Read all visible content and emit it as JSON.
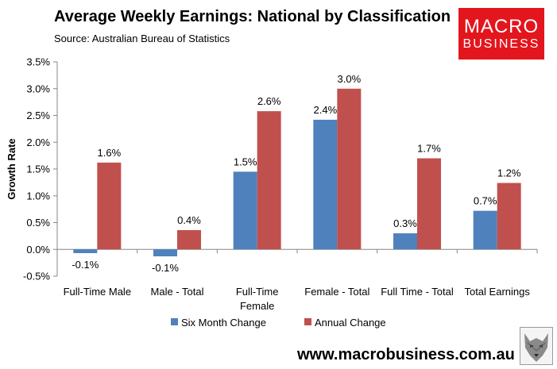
{
  "header": {
    "title": "Average Weekly Earnings: National by Classification",
    "source": "Source: Australian Bureau of Statistics"
  },
  "logo": {
    "line1": "MACRO",
    "line2": "BUSINESS",
    "color": "#e3151d"
  },
  "footer": {
    "website": "www.macrobusiness.com.au"
  },
  "chart_data": {
    "type": "bar",
    "title": "Average Weekly Earnings: National by Classification",
    "xlabel": "",
    "ylabel": "Growth Rate",
    "ylim": [
      -0.5,
      3.5
    ],
    "yticks": [
      -0.5,
      0.0,
      0.5,
      1.0,
      1.5,
      2.0,
      2.5,
      3.0,
      3.5
    ],
    "ytick_labels": [
      "-0.5%",
      "0.0%",
      "0.5%",
      "1.0%",
      "1.5%",
      "2.0%",
      "2.5%",
      "3.0%",
      "3.5%"
    ],
    "categories": [
      [
        "Full-Time Male"
      ],
      [
        "Male - Total"
      ],
      [
        "Full-Time",
        "Female"
      ],
      [
        "Female - Total"
      ],
      [
        "Full Time - Total"
      ],
      [
        "Total Earnings"
      ]
    ],
    "series": [
      {
        "name": "Six Month Change",
        "color": "#4f81bd",
        "values": [
          -0.07,
          -0.13,
          1.45,
          2.42,
          0.3,
          0.72
        ],
        "labels": [
          "-0.1%",
          "-0.1%",
          "1.5%",
          "2.4%",
          "0.3%",
          "0.7%"
        ]
      },
      {
        "name": "Annual Change",
        "color": "#c0504d",
        "values": [
          1.62,
          0.36,
          2.58,
          3.0,
          1.7,
          1.24
        ],
        "labels": [
          "1.6%",
          "0.4%",
          "2.6%",
          "3.0%",
          "1.7%",
          "1.2%"
        ]
      }
    ],
    "grid": false,
    "legend_position": "bottom"
  }
}
